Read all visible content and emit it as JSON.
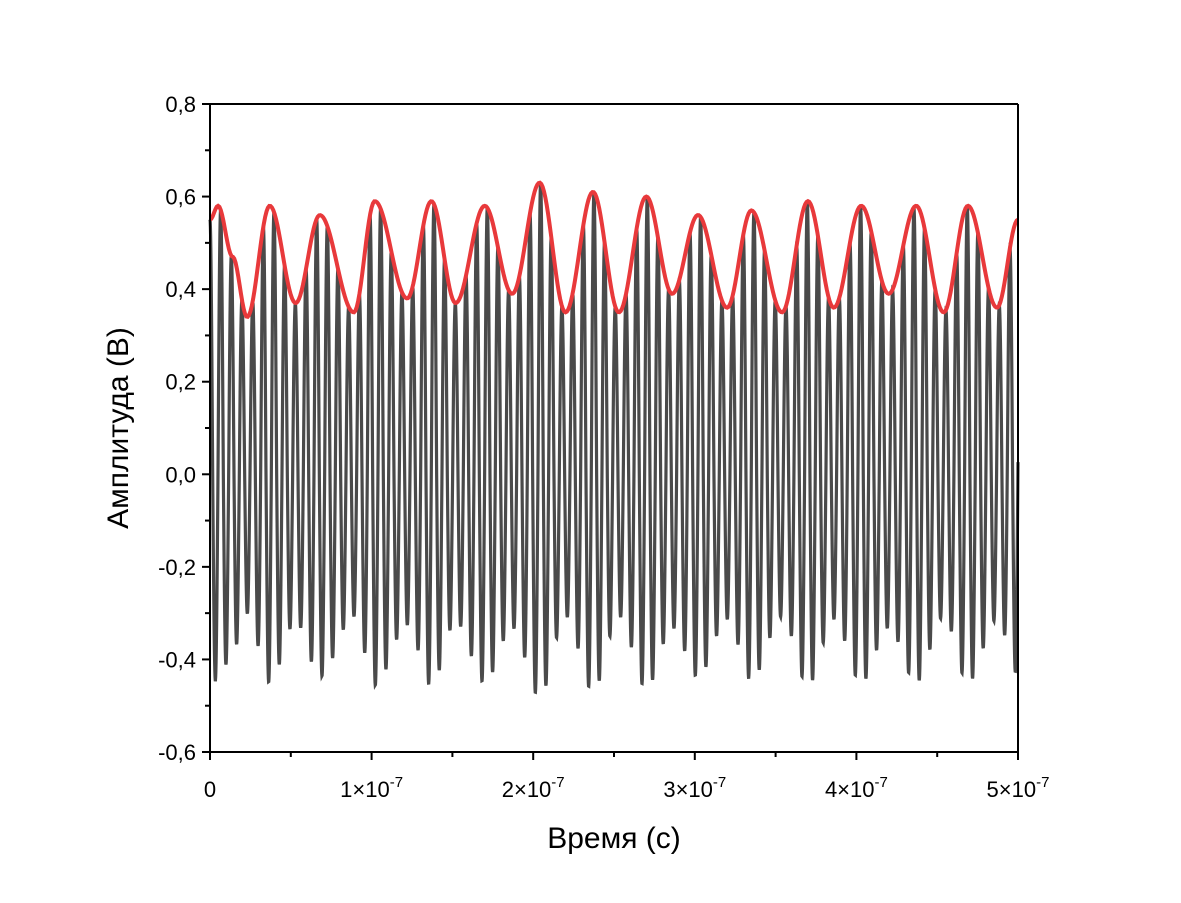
{
  "chart_data": {
    "type": "line",
    "xlabel": "Время (с)",
    "ylabel": "Амплитуда (В)",
    "xlim": [
      0,
      5e-07
    ],
    "ylim": [
      -0.6,
      0.8
    ],
    "x_ticks": [
      {
        "value": 0,
        "mantissa": "0",
        "exp": ""
      },
      {
        "value": 1e-07,
        "mantissa": "1×10",
        "exp": "-7"
      },
      {
        "value": 2e-07,
        "mantissa": "2×10",
        "exp": "-7"
      },
      {
        "value": 3e-07,
        "mantissa": "3×10",
        "exp": "-7"
      },
      {
        "value": 4e-07,
        "mantissa": "4×10",
        "exp": "-7"
      },
      {
        "value": 5e-07,
        "mantissa": "5×10",
        "exp": "-7"
      }
    ],
    "y_ticks": [
      {
        "value": 0.8,
        "label": "0,8"
      },
      {
        "value": 0.6,
        "label": "0,6"
      },
      {
        "value": 0.4,
        "label": "0,4"
      },
      {
        "value": 0.2,
        "label": "0,2"
      },
      {
        "value": 0.0,
        "label": "0,0"
      },
      {
        "value": -0.2,
        "label": "-0,2"
      },
      {
        "value": -0.4,
        "label": "-0,4"
      },
      {
        "value": -0.6,
        "label": "-0,6"
      }
    ],
    "grid": false,
    "legend": "none",
    "series": [
      {
        "color": "#4a4a4a",
        "description": "dense oscillating signal",
        "carrier_period_s": 6.6e-09,
        "amplitude_range_V": [
          -0.5,
          0.63
        ]
      },
      {
        "color": "#e8393b",
        "description": "envelope",
        "x": [
          0,
          5e-09,
          1.4e-08,
          2.3e-08,
          3.7e-08,
          5.3e-08,
          6.8e-08,
          8.9e-08,
          1.02e-07,
          1.22e-07,
          1.37e-07,
          1.52e-07,
          1.7e-07,
          1.87e-07,
          2.04e-07,
          2.2e-07,
          2.37e-07,
          2.53e-07,
          2.7e-07,
          2.86e-07,
          3.02e-07,
          3.2e-07,
          3.35e-07,
          3.54e-07,
          3.7e-07,
          3.86e-07,
          4.03e-07,
          4.2e-07,
          4.37e-07,
          4.54e-07,
          4.69e-07,
          4.87e-07,
          5e-07
        ],
        "y": [
          0.55,
          0.58,
          0.47,
          0.34,
          0.58,
          0.37,
          0.56,
          0.35,
          0.59,
          0.38,
          0.59,
          0.37,
          0.58,
          0.39,
          0.63,
          0.35,
          0.61,
          0.35,
          0.6,
          0.39,
          0.56,
          0.36,
          0.57,
          0.35,
          0.59,
          0.36,
          0.58,
          0.39,
          0.58,
          0.35,
          0.58,
          0.36,
          0.55
        ]
      }
    ]
  }
}
